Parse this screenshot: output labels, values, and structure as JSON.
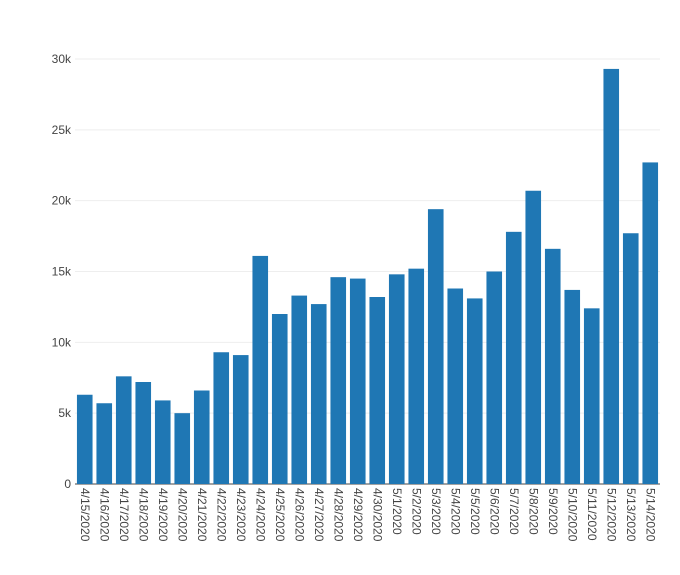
{
  "colors": {
    "bar": "#1f77b4",
    "grid": "#eeeeee",
    "axis": "#444444",
    "background": "#ffffff"
  },
  "chart_data": {
    "type": "bar",
    "title": "",
    "xlabel": "",
    "ylabel": "",
    "grid": true,
    "legend": "none",
    "ylim": [
      0,
      30000
    ],
    "yticks": [
      0,
      5000,
      10000,
      15000,
      20000,
      25000,
      30000
    ],
    "ytick_labels": [
      "0",
      "5k",
      "10k",
      "15k",
      "20k",
      "25k",
      "30k"
    ],
    "categories": [
      "4/15/2020",
      "4/16/2020",
      "4/17/2020",
      "4/18/2020",
      "4/19/2020",
      "4/20/2020",
      "4/21/2020",
      "4/22/2020",
      "4/23/2020",
      "4/24/2020",
      "4/25/2020",
      "4/26/2020",
      "4/27/2020",
      "4/28/2020",
      "4/29/2020",
      "4/30/2020",
      "5/1/2020",
      "5/2/2020",
      "5/3/2020",
      "5/4/2020",
      "5/5/2020",
      "5/6/2020",
      "5/7/2020",
      "5/8/2020",
      "5/9/2020",
      "5/10/2020",
      "5/11/2020",
      "5/12/2020",
      "5/13/2020",
      "5/14/2020"
    ],
    "values": [
      6300,
      5700,
      7600,
      7200,
      5900,
      5000,
      6600,
      9300,
      9100,
      16100,
      12000,
      13300,
      12700,
      14600,
      14500,
      13200,
      14800,
      15200,
      19400,
      13800,
      13100,
      15000,
      17800,
      20700,
      16600,
      13700,
      12400,
      29300,
      17700,
      22700
    ]
  }
}
